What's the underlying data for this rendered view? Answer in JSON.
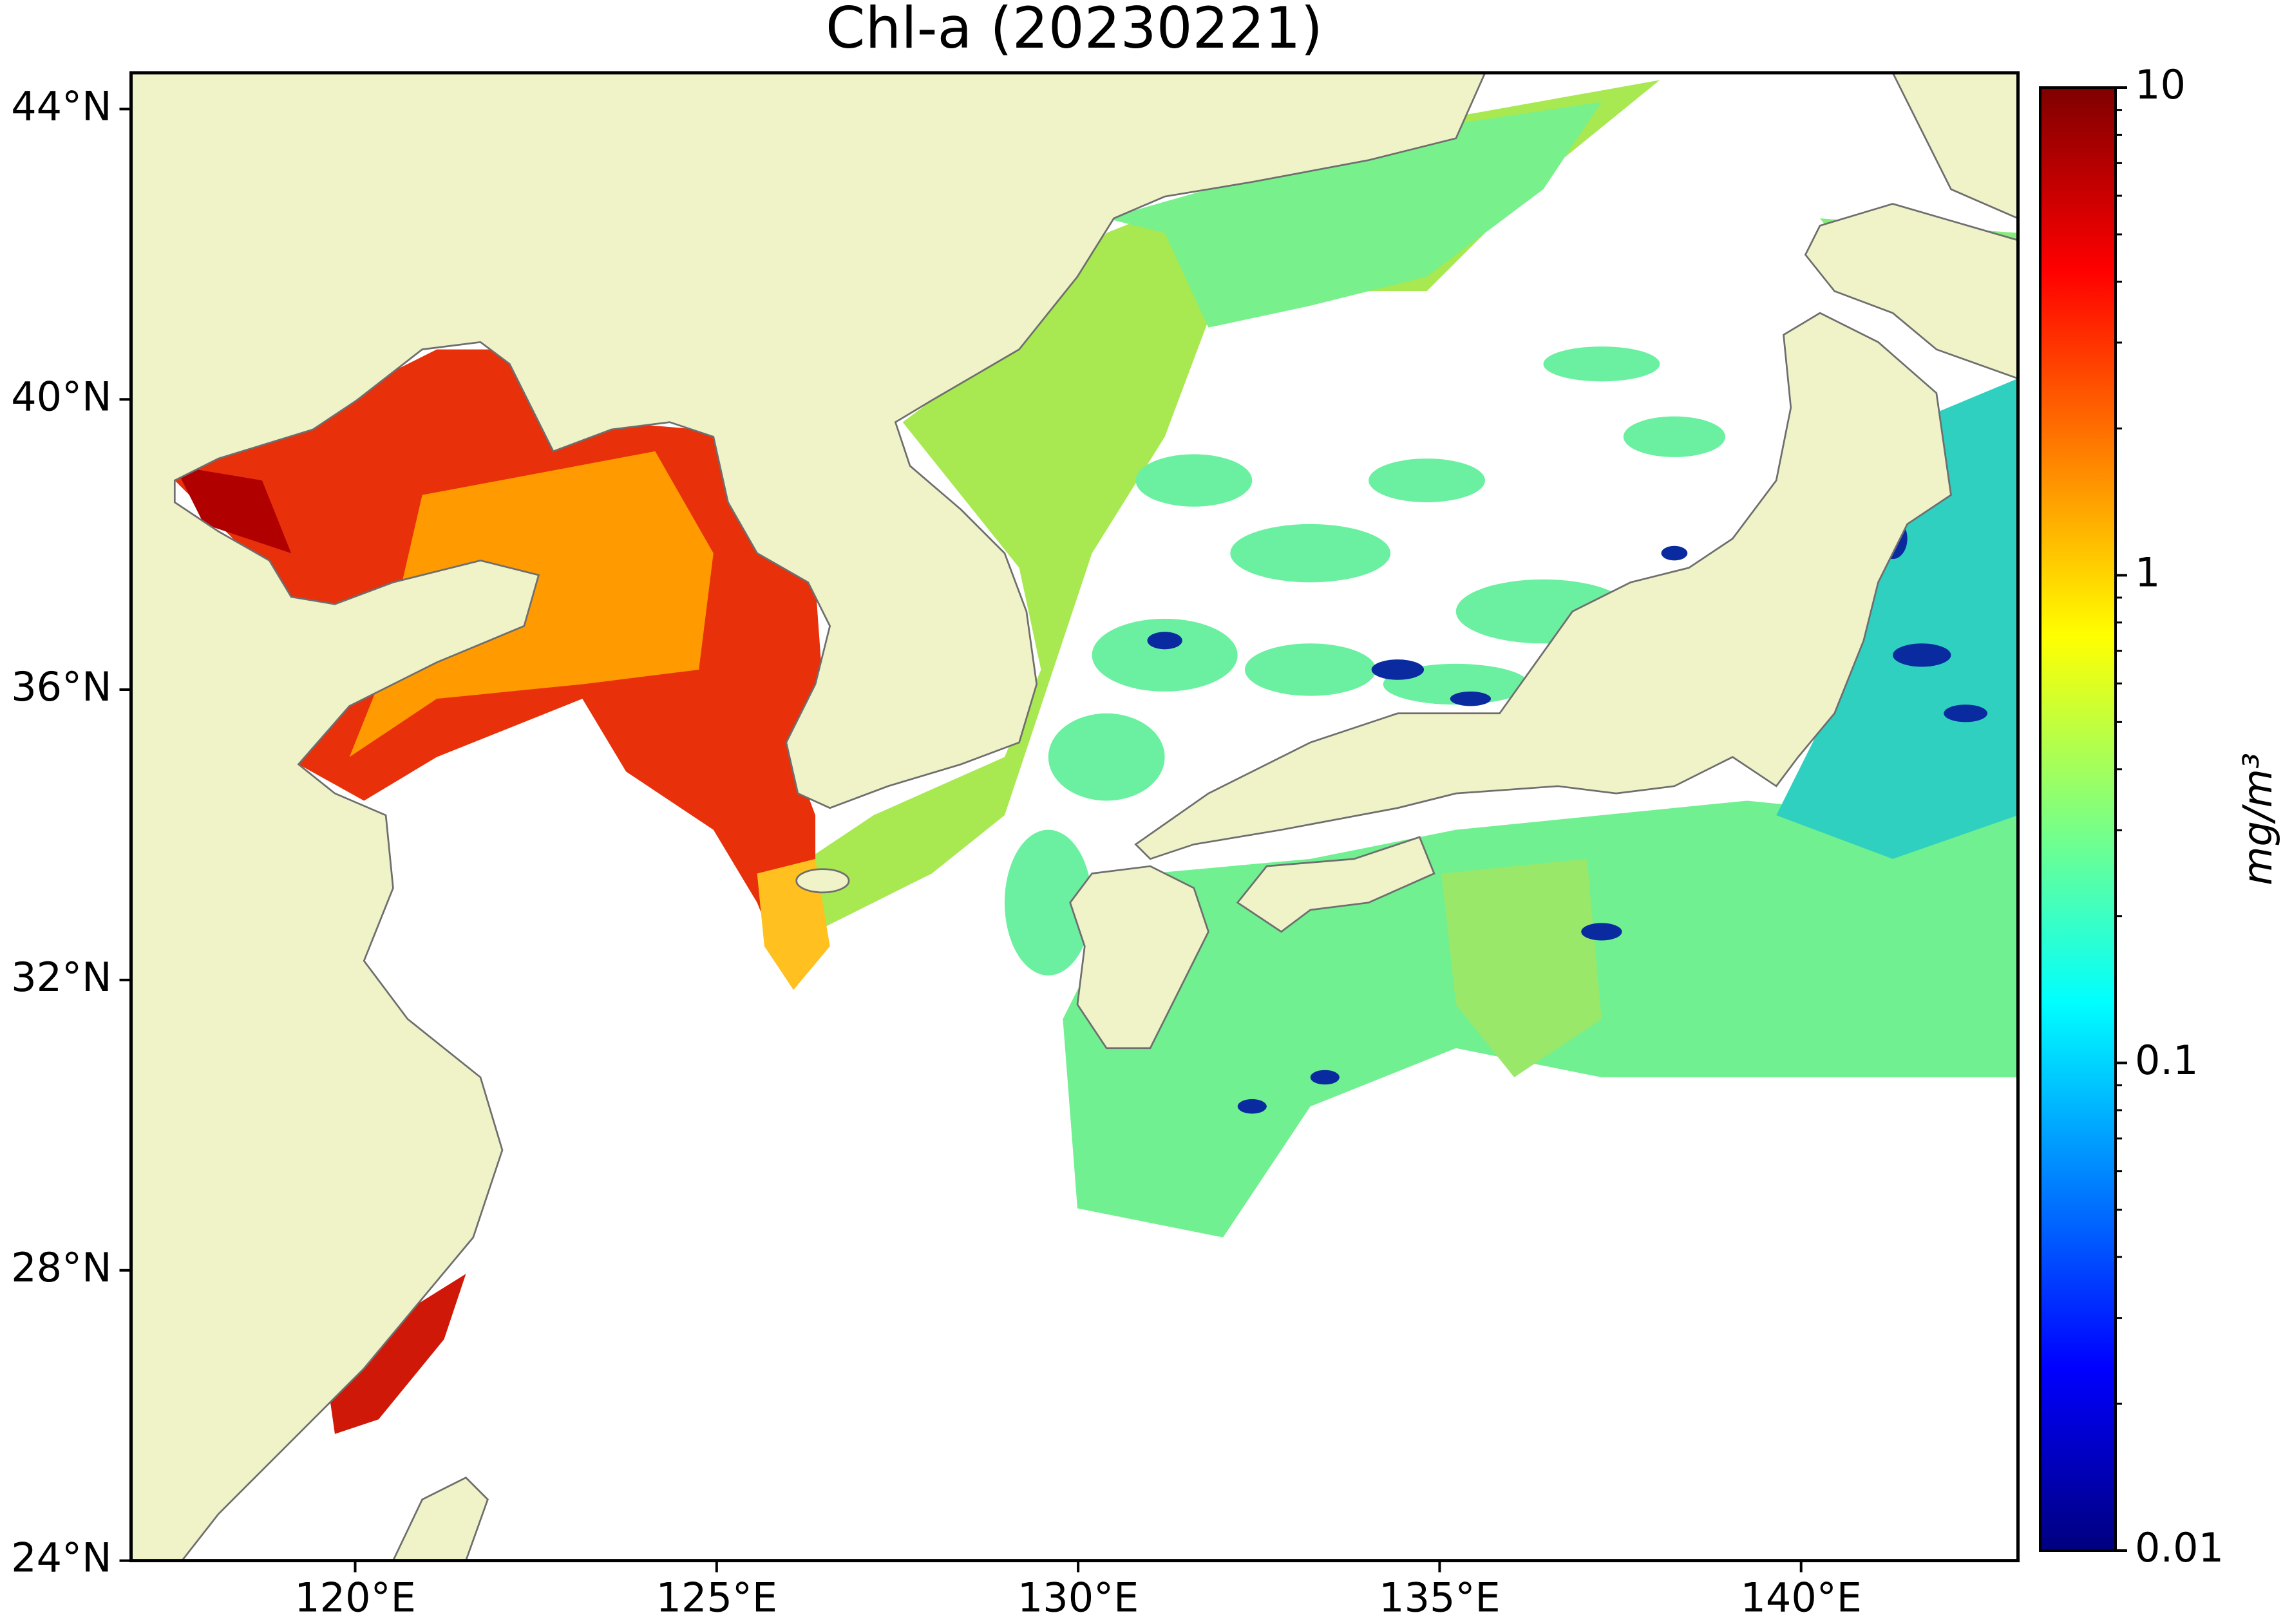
{
  "chart_data": {
    "type": "map",
    "title": "Chl-a (20230221)",
    "xlim": [
      116.9,
      143
    ],
    "ylim": [
      24,
      44.5
    ],
    "xticks": [
      {
        "value": 120,
        "label": "120°E"
      },
      {
        "value": 125,
        "label": "125°E"
      },
      {
        "value": 130,
        "label": "130°E"
      },
      {
        "value": 135,
        "label": "135°E"
      },
      {
        "value": 140,
        "label": "140°E"
      }
    ],
    "yticks": [
      {
        "value": 24,
        "label": "24°N"
      },
      {
        "value": 28,
        "label": "28°N"
      },
      {
        "value": 32,
        "label": "32°N"
      },
      {
        "value": 36,
        "label": "36°N"
      },
      {
        "value": 40,
        "label": "40°N"
      },
      {
        "value": 44,
        "label": "44°N"
      }
    ],
    "colorbar": {
      "label": "mg/m³",
      "scale": "log",
      "lim": [
        0.01,
        10
      ],
      "ticks": [
        0.01,
        0.1,
        1,
        10
      ],
      "minor_ticks": [
        0.02,
        0.03,
        0.04,
        0.05,
        0.06,
        0.07,
        0.08,
        0.09,
        0.2,
        0.3,
        0.4,
        0.5,
        0.6,
        0.7,
        0.8,
        0.9,
        2,
        3,
        4,
        5,
        6,
        7,
        8,
        9
      ],
      "colormap": [
        "#00007f",
        "#0000ff",
        "#007fff",
        "#00ffff",
        "#7fff7f",
        "#ffff00",
        "#ff7f00",
        "#ff0000",
        "#7f0000"
      ]
    }
  }
}
